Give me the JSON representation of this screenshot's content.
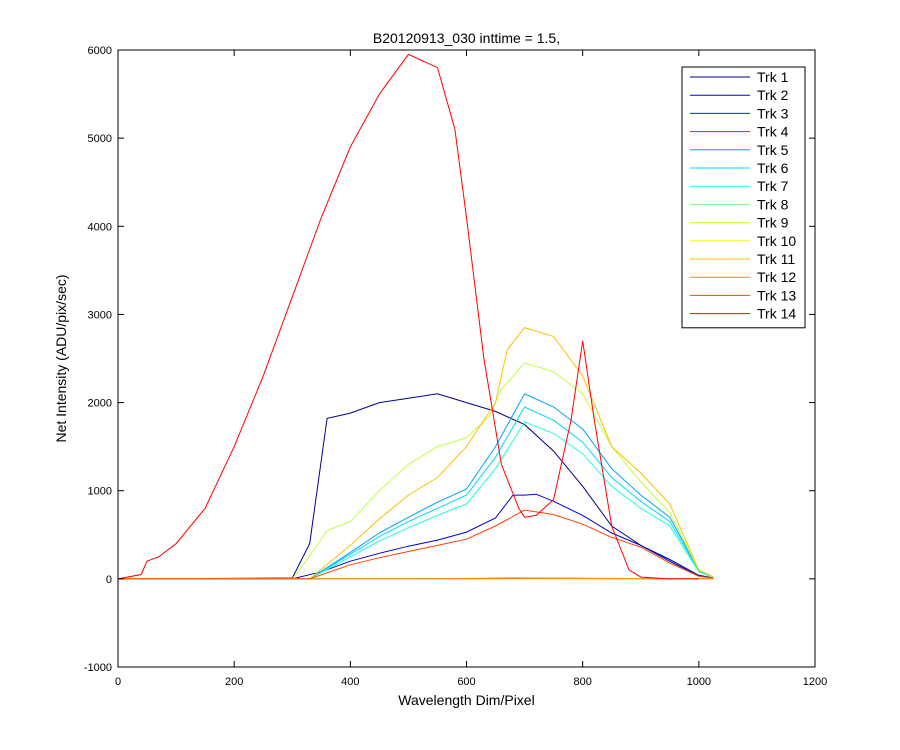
{
  "chart_data": {
    "type": "line",
    "title": "B20120913_030 inttime = 1.5,",
    "xlabel": "Wavelength Dim/Pixel",
    "ylabel": "Net Intensity (ADU/pix/sec)",
    "xlim": [
      0,
      1200
    ],
    "ylim": [
      -1000,
      6000
    ],
    "xticks": [
      "0",
      "200",
      "400",
      "600",
      "800",
      "1000",
      "1200"
    ],
    "yticks": [
      "-1000",
      "0",
      "1000",
      "2000",
      "3000",
      "4000",
      "5000",
      "6000"
    ],
    "grid": false,
    "legend_position": "top-right",
    "series": [
      {
        "name": "Trk 1",
        "color": "#00008F",
        "x": [
          0,
          300,
          330,
          360,
          400,
          450,
          500,
          550,
          600,
          650,
          700,
          750,
          800,
          850,
          900,
          950,
          1000,
          1025
        ],
        "y": [
          0,
          10,
          400,
          1820,
          1880,
          2000,
          2050,
          2100,
          2000,
          1900,
          1750,
          1450,
          1050,
          600,
          380,
          220,
          40,
          10
        ]
      },
      {
        "name": "Trk 2",
        "color": "#0000D0",
        "x": [
          0,
          300,
          350,
          400,
          450,
          500,
          550,
          600,
          650,
          680,
          700,
          720,
          750,
          800,
          850,
          900,
          950,
          1000,
          1025
        ],
        "y": [
          0,
          0,
          80,
          200,
          290,
          370,
          440,
          530,
          690,
          950,
          950,
          960,
          880,
          720,
          520,
          380,
          200,
          30,
          10
        ]
      },
      {
        "name": "Trk 3",
        "color": "#0020FF",
        "x": [
          0,
          300,
          500,
          700,
          900,
          1025
        ],
        "y": [
          0,
          0,
          0,
          8,
          4,
          0
        ]
      },
      {
        "name": "Trk 4",
        "color": "#0060FF",
        "x": [
          0,
          300,
          500,
          700,
          900,
          1025
        ],
        "y": [
          0,
          0,
          0,
          6,
          3,
          0
        ]
      },
      {
        "name": "Trk 5",
        "color": "#00A0FF",
        "x": [
          0,
          330,
          400,
          450,
          500,
          550,
          600,
          650,
          700,
          750,
          800,
          850,
          900,
          950,
          1000,
          1025
        ],
        "y": [
          0,
          0,
          300,
          520,
          700,
          870,
          1020,
          1500,
          2100,
          1950,
          1700,
          1250,
          950,
          700,
          100,
          20
        ]
      },
      {
        "name": "Trk 6",
        "color": "#00D8FF",
        "x": [
          0,
          330,
          400,
          450,
          500,
          550,
          600,
          650,
          700,
          750,
          800,
          850,
          900,
          950,
          1000,
          1025
        ],
        "y": [
          0,
          0,
          280,
          480,
          650,
          800,
          950,
          1380,
          1950,
          1800,
          1550,
          1150,
          880,
          650,
          90,
          15
        ]
      },
      {
        "name": "Trk 7",
        "color": "#20FFDF",
        "x": [
          0,
          330,
          400,
          450,
          500,
          550,
          600,
          650,
          700,
          750,
          800,
          850,
          900,
          950,
          1000,
          1025
        ],
        "y": [
          0,
          0,
          250,
          430,
          580,
          720,
          850,
          1250,
          1780,
          1650,
          1420,
          1050,
          800,
          600,
          80,
          12
        ]
      },
      {
        "name": "Trk 8",
        "color": "#80FF80",
        "x": [
          0,
          330,
          400,
          450,
          500,
          550,
          600,
          650,
          700,
          750,
          800,
          850,
          900,
          950,
          1000,
          1025
        ],
        "y": [
          0,
          0,
          0,
          0,
          0,
          0,
          0,
          0,
          5,
          5,
          4,
          3,
          2,
          0,
          0,
          0
        ]
      },
      {
        "name": "Trk 9",
        "color": "#C0FF40",
        "x": [
          0,
          300,
          330,
          360,
          400,
          450,
          500,
          550,
          600,
          640,
          660,
          700,
          750,
          800,
          850,
          900,
          950,
          1000,
          1025
        ],
        "y": [
          0,
          0,
          260,
          550,
          650,
          1000,
          1300,
          1500,
          1600,
          1850,
          2150,
          2450,
          2350,
          2100,
          1500,
          1100,
          750,
          100,
          20
        ]
      },
      {
        "name": "Trk 10",
        "color": "#EFFF10",
        "x": [
          0,
          300,
          500,
          700,
          900,
          1025
        ],
        "y": [
          0,
          0,
          0,
          5,
          3,
          0
        ]
      },
      {
        "name": "Trk 11",
        "color": "#FFBF00",
        "x": [
          0,
          330,
          400,
          450,
          500,
          550,
          600,
          650,
          670,
          700,
          750,
          800,
          850,
          900,
          950,
          1000,
          1025
        ],
        "y": [
          0,
          0,
          380,
          680,
          950,
          1150,
          1500,
          2000,
          2600,
          2850,
          2750,
          2300,
          1500,
          1200,
          850,
          100,
          20
        ]
      },
      {
        "name": "Trk 12",
        "color": "#FF8000",
        "x": [
          0,
          300,
          500,
          700,
          900,
          1025
        ],
        "y": [
          0,
          0,
          0,
          4,
          2,
          0
        ]
      },
      {
        "name": "Trk 13",
        "color": "#FF4000",
        "x": [
          0,
          330,
          400,
          450,
          500,
          550,
          600,
          650,
          700,
          750,
          800,
          850,
          900,
          950,
          1000,
          1025
        ],
        "y": [
          0,
          0,
          160,
          240,
          310,
          380,
          450,
          600,
          780,
          730,
          620,
          470,
          360,
          180,
          30,
          10
        ]
      },
      {
        "name": "Trk 14",
        "color": "#FF0000",
        "x": [
          0,
          40,
          50,
          70,
          100,
          150,
          200,
          250,
          300,
          350,
          400,
          450,
          500,
          550,
          580,
          600,
          630,
          660,
          690,
          700,
          720,
          750,
          780,
          800,
          820,
          850,
          880,
          900,
          950,
          1000
        ],
        "y": [
          0,
          50,
          200,
          250,
          400,
          800,
          1500,
          2300,
          3200,
          4100,
          4900,
          5500,
          5950,
          5800,
          5100,
          4100,
          2500,
          1300,
          800,
          700,
          720,
          900,
          1800,
          2700,
          1800,
          600,
          100,
          20,
          0,
          0
        ]
      }
    ]
  }
}
